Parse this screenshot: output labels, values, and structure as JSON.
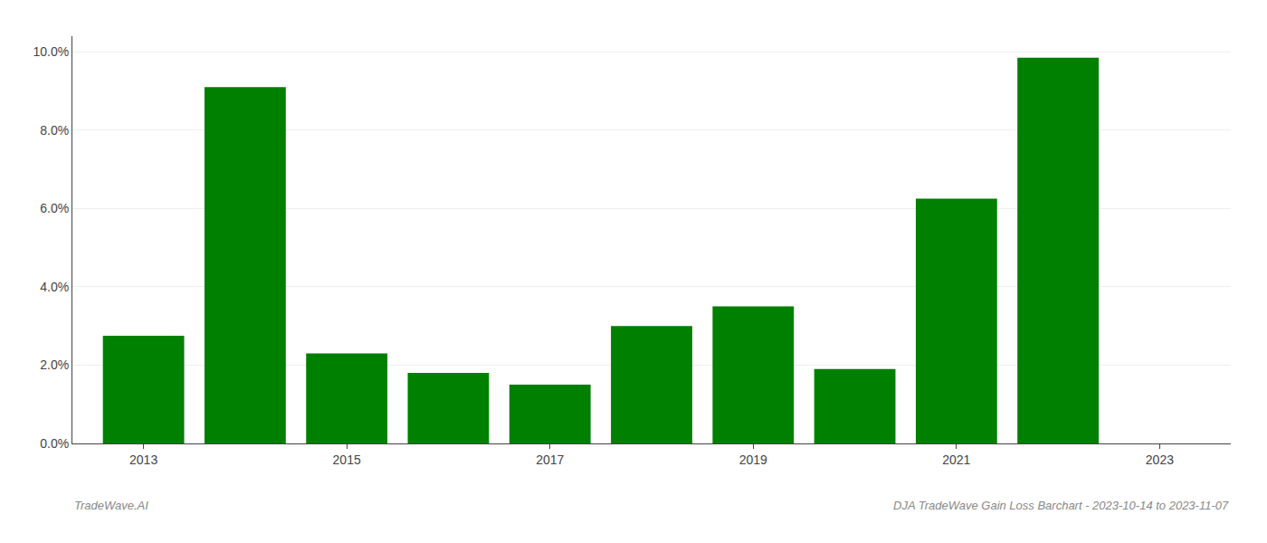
{
  "chart_data": {
    "type": "bar",
    "x": [
      2013,
      2014,
      2015,
      2016,
      2017,
      2018,
      2019,
      2020,
      2021,
      2022,
      2023
    ],
    "values": [
      0.0275,
      0.091,
      0.023,
      0.018,
      0.015,
      0.03,
      0.035,
      0.019,
      0.0625,
      0.0985,
      null
    ],
    "color": "#008000",
    "xlim": [
      2012.3,
      2023.7
    ],
    "xticks": [
      2013,
      2015,
      2017,
      2019,
      2021,
      2023
    ],
    "ylim": [
      0.0,
      0.104
    ],
    "yticks": [
      {
        "value": 0.0,
        "label": "0.0%"
      },
      {
        "value": 0.02,
        "label": "2.0%"
      },
      {
        "value": 0.04,
        "label": "4.0%"
      },
      {
        "value": 0.06,
        "label": "6.0%"
      },
      {
        "value": 0.08,
        "label": "8.0%"
      },
      {
        "value": 0.1,
        "label": "10.0%"
      }
    ],
    "grid": true,
    "annotations": [
      "TradeWave.AI",
      "DJA TradeWave Gain Loss Barchart - 2023-10-14 to 2023-11-07"
    ]
  }
}
